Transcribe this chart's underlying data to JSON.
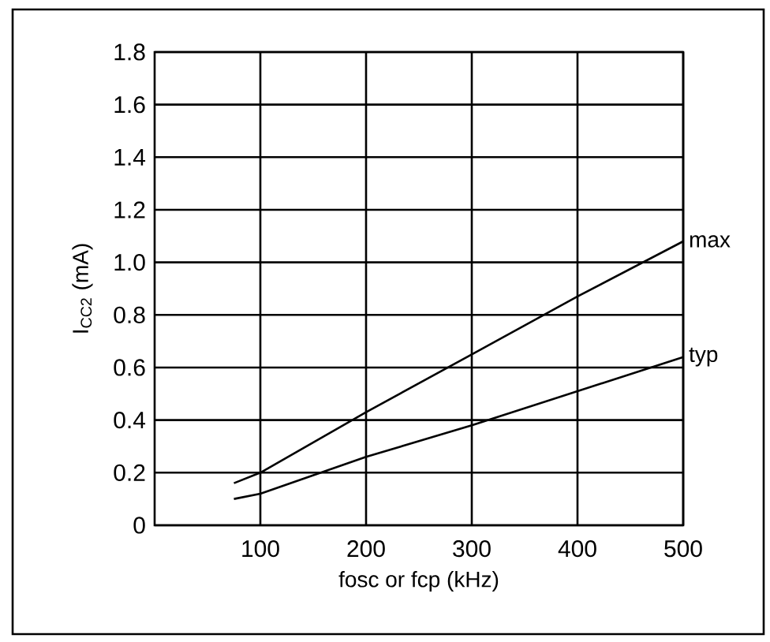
{
  "chart_data": {
    "type": "line",
    "xlabel": "fosc or fcp (kHz)",
    "ylabel": "I$_{CC2}$ (mA)",
    "xlim": [
      0,
      500
    ],
    "xticks": [
      100,
      200,
      300,
      400,
      500
    ],
    "ylim": [
      0,
      1.8
    ],
    "yticks": [
      0,
      0.2,
      0.4,
      0.6,
      0.8,
      {
        "value": 1.0,
        "label": "1.0"
      },
      1.2,
      1.4,
      1.6,
      1.8
    ],
    "grid": true,
    "legend": false,
    "marker": "none",
    "line_style": "solid",
    "series": [
      {
        "name": "max",
        "color": "#000000",
        "x": [
          75,
          100,
          200,
          300,
          400,
          500
        ],
        "values": [
          0.16,
          0.2,
          0.43,
          0.65,
          0.87,
          1.08
        ]
      },
      {
        "name": "typ",
        "color": "#000000",
        "x": [
          75,
          100,
          200,
          300,
          400,
          500
        ],
        "values": [
          0.1,
          0.12,
          0.26,
          0.38,
          0.51,
          0.64
        ]
      }
    ]
  }
}
